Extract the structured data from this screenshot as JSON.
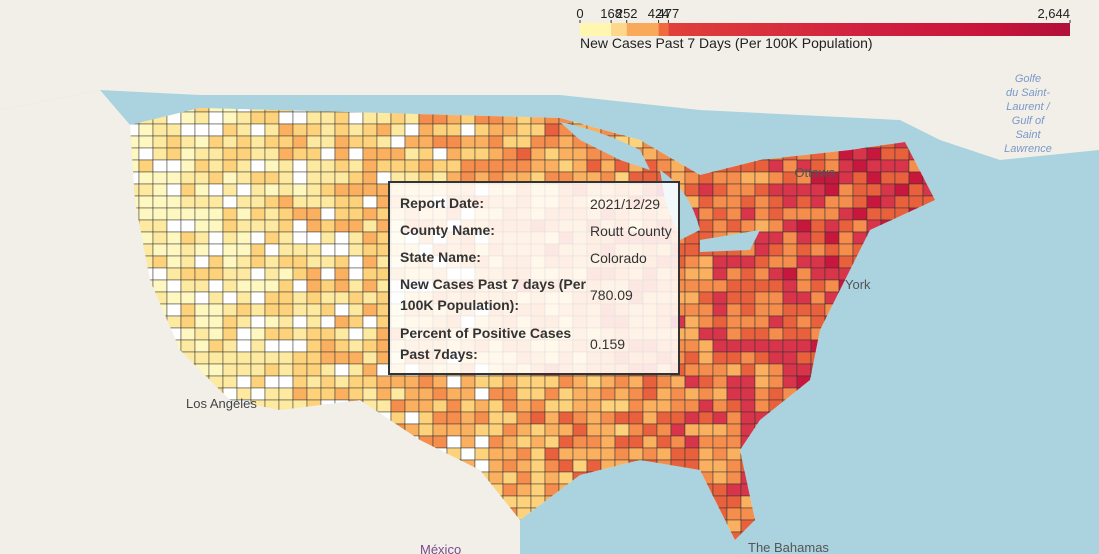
{
  "colorbar": {
    "ticks": [
      0,
      168,
      252,
      424,
      477,
      {
        "value": 2644,
        "label": "2,644"
      }
    ],
    "title": "New Cases Past 7 Days (Per 100K Population)"
  },
  "map_labels": {
    "ottawa": "Ottawa",
    "new_york": "York",
    "gulf": [
      "Golfe",
      "du Saint-",
      "Laurent /",
      "Gulf of",
      "Saint",
      "Lawrence"
    ],
    "los_angeles": "Los Angeles",
    "mexico": "México",
    "bahamas": "The Bahamas"
  },
  "tooltip": {
    "rows": [
      {
        "key": "Report Date:",
        "value": "2021/12/29"
      },
      {
        "key": "County Name:",
        "value": "Routt County"
      },
      {
        "key": "State Name:",
        "value": "Colorado"
      },
      {
        "key": "New Cases Past 7 days (Per 100K Population):",
        "value": 780.09
      },
      {
        "key": "Percent of Positive Cases Past 7days:",
        "value": 0.159
      }
    ]
  }
}
